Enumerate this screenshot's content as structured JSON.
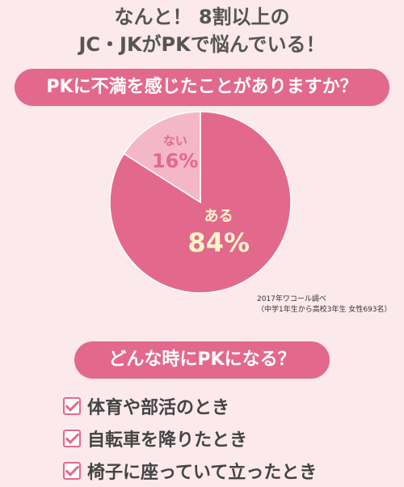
{
  "headline": {
    "line1": "なんと！ 8割以上の",
    "line2": "JC・JKがPKで悩んでいる！"
  },
  "question": "PKに不満を感じたことがありますか？",
  "chart_data": {
    "type": "pie",
    "title": "",
    "slices": [
      {
        "label": "ある",
        "value": 84,
        "display": "84%",
        "color": "#e3698c",
        "label_color": "#fff5c8"
      },
      {
        "label": "ない",
        "value": 16,
        "display": "16%",
        "color": "#f4b7c9",
        "label_color": "#e3698c"
      }
    ],
    "start": "12 o'clock, clockwise"
  },
  "source": {
    "line1": "2017年ワコール調べ",
    "line2": "（中学1年生から高校3年生 女性693名）"
  },
  "section2": {
    "title": "どんな時にPKになる？",
    "items": [
      "体育や部活のとき",
      "自転車を降りたとき",
      "椅子に座っていて立ったとき"
    ]
  },
  "colors": {
    "background": "#fbe9ec",
    "accent": "#e3698c",
    "light_pink": "#f4b7c9"
  }
}
